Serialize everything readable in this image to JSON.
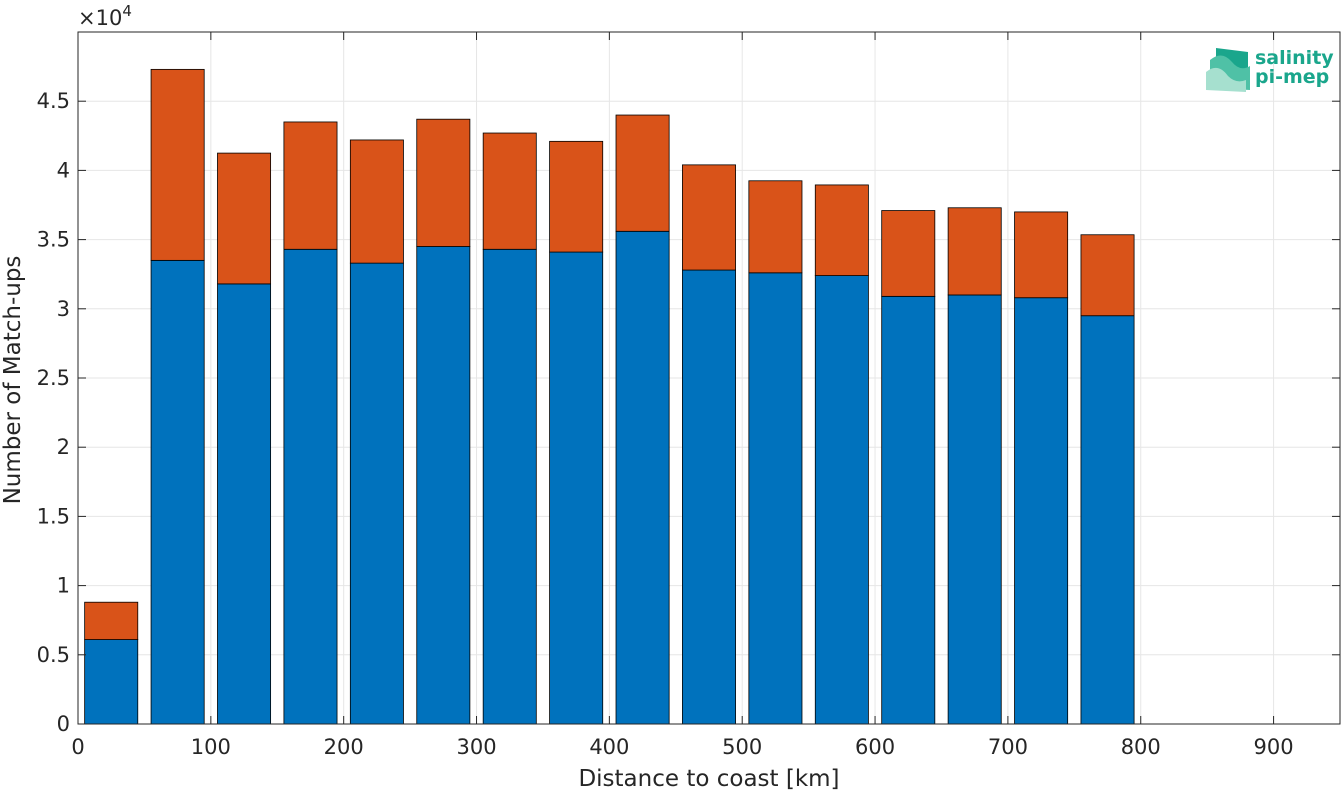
{
  "chart_data": {
    "type": "bar",
    "stacked": true,
    "x": [
      25,
      75,
      125,
      175,
      225,
      275,
      325,
      375,
      425,
      475,
      525,
      575,
      625,
      675,
      725,
      775
    ],
    "series": [
      {
        "color": "#0072BD",
        "values": [
          6100,
          33500,
          31800,
          34300,
          33300,
          34500,
          34300,
          34100,
          35600,
          32800,
          32600,
          32400,
          30900,
          31000,
          30800,
          29500
        ]
      },
      {
        "color": "#D95319",
        "values": [
          2700,
          13800,
          9450,
          9200,
          8900,
          9200,
          8400,
          8000,
          8400,
          7600,
          6650,
          6550,
          6200,
          6300,
          6200,
          5850
        ]
      }
    ],
    "bar_width": 40,
    "xlim": [
      0,
      950
    ],
    "ylim": [
      0,
      50000
    ],
    "xticks": [
      "0",
      "100",
      "200",
      "300",
      "400",
      "500",
      "600",
      "700",
      "800",
      "900"
    ],
    "yticks": [
      "0",
      "0.5",
      "1",
      "1.5",
      "2",
      "2.5",
      "3",
      "3.5",
      "4",
      "4.5"
    ],
    "y_exponent_base": "×10",
    "y_exponent": "4",
    "xlabel": "Distance to coast [km]",
    "ylabel": "Number of Match-ups",
    "grid": true,
    "legend": "none"
  },
  "logo": {
    "line1": "salinity",
    "line2": "pi-mep"
  }
}
